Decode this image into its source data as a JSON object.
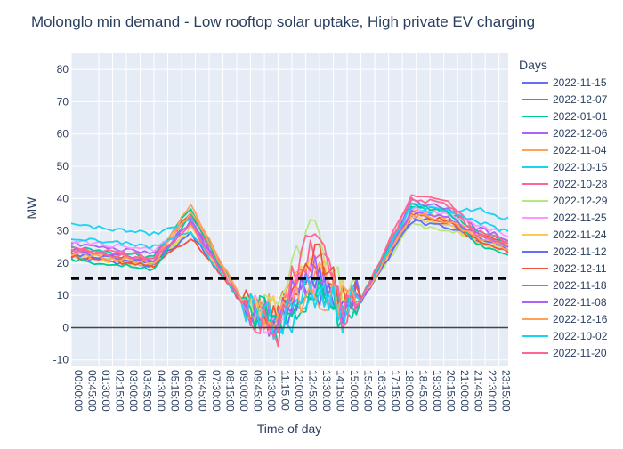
{
  "chart_data": {
    "type": "line",
    "title": "Molonglo min demand - Low rooftop solar uptake, High private EV charging",
    "xlabel": "Time of day",
    "ylabel": "MW",
    "ylim": [
      -12,
      85
    ],
    "yticks": [
      -10,
      0,
      10,
      20,
      30,
      40,
      50,
      60,
      70,
      80
    ],
    "x_step_minutes": 15,
    "x_count": 96,
    "xtick_labels": [
      "00:00:00",
      "00:45:00",
      "01:30:00",
      "02:15:00",
      "03:00:00",
      "03:45:00",
      "04:30:00",
      "05:15:00",
      "06:00:00",
      "06:45:00",
      "07:30:00",
      "08:15:00",
      "09:00:00",
      "09:45:00",
      "10:30:00",
      "11:15:00",
      "12:00:00",
      "12:45:00",
      "13:30:00",
      "14:15:00",
      "15:00:00",
      "15:45:00",
      "16:30:00",
      "17:15:00",
      "18:00:00",
      "18:45:00",
      "19:30:00",
      "20:15:00",
      "21:00:00",
      "21:45:00",
      "22:30:00",
      "23:15:00"
    ],
    "xtick_every": 3,
    "threshold_line": 15.2,
    "zero_line": 0,
    "legend_title": "Days",
    "series": [
      {
        "name": "2022-11-15",
        "color": "#636efa"
      },
      {
        "name": "2022-12-07",
        "color": "#EF553B"
      },
      {
        "name": "2022-01-01",
        "color": "#00cc96"
      },
      {
        "name": "2022-12-06",
        "color": "#ab63fa"
      },
      {
        "name": "2022-11-04",
        "color": "#FFA15A"
      },
      {
        "name": "2022-10-15",
        "color": "#19d3f3"
      },
      {
        "name": "2022-10-28",
        "color": "#FF6692"
      },
      {
        "name": "2022-12-29",
        "color": "#B6E880"
      },
      {
        "name": "2022-11-25",
        "color": "#FF97FF"
      },
      {
        "name": "2022-11-24",
        "color": "#FECB52"
      },
      {
        "name": "2022-11-12",
        "color": "#636efa"
      },
      {
        "name": "2022-12-11",
        "color": "#EF553B"
      },
      {
        "name": "2022-11-18",
        "color": "#00cc96"
      },
      {
        "name": "2022-11-08",
        "color": "#ab63fa"
      },
      {
        "name": "2022-12-16",
        "color": "#FFA15A"
      },
      {
        "name": "2022-10-02",
        "color": "#19d3f3"
      },
      {
        "name": "2022-11-20",
        "color": "#FF6692"
      }
    ],
    "profile_note": "Daily minimum-demand profiles (MW, 15-min resolution): overnight ~20-33, morning peak ~30-39 near 06:00-06:45, midday trough -5 to 28 between 09:30 and 15:30, evening peak ~32-42 near 18:00-19:30."
  }
}
